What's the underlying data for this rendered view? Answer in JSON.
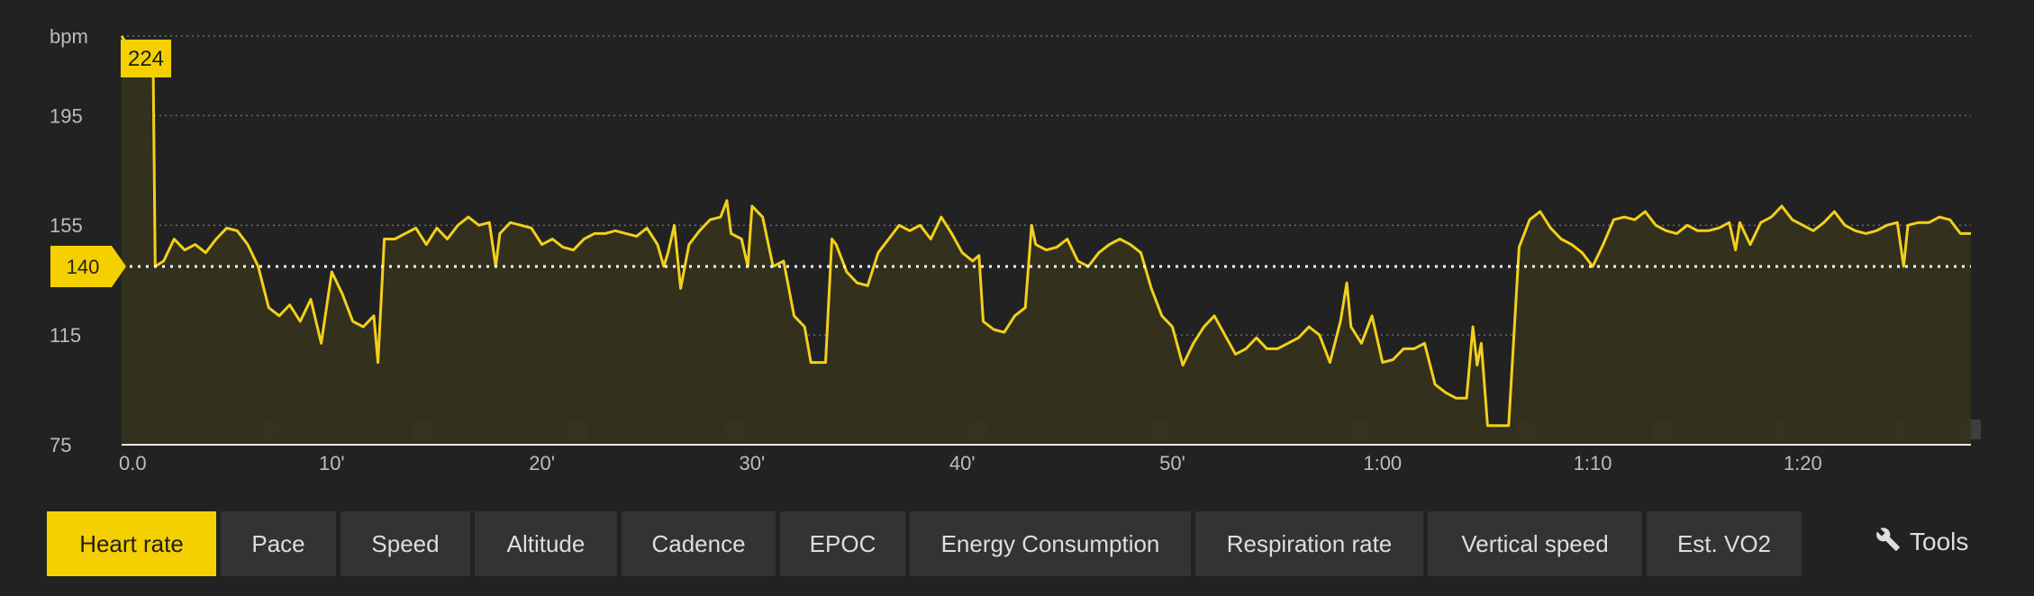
{
  "chart_data": {
    "type": "area",
    "ylabel": "bpm",
    "ylim": [
      75,
      224
    ],
    "yticks": [
      "75",
      "115",
      "155",
      "195"
    ],
    "xlim_minutes": [
      0,
      88
    ],
    "xticks": [
      {
        "t": 0,
        "label": "0.0"
      },
      {
        "t": 10,
        "label": "10'"
      },
      {
        "t": 20,
        "label": "20'"
      },
      {
        "t": 30,
        "label": "30'"
      },
      {
        "t": 40,
        "label": "40'"
      },
      {
        "t": 50,
        "label": "50'"
      },
      {
        "t": 60,
        "label": "1:00"
      },
      {
        "t": 70,
        "label": "1:10"
      },
      {
        "t": 80,
        "label": "1:20"
      }
    ],
    "grid": true,
    "max_label": "224",
    "avg_label": "140",
    "avg_value": 140,
    "series": [
      {
        "values": [
          [
            0.0,
            224
          ],
          [
            0.5,
            218
          ],
          [
            1.0,
            216
          ],
          [
            1.5,
            214
          ],
          [
            1.6,
            140
          ],
          [
            2.0,
            142
          ],
          [
            2.5,
            150
          ],
          [
            3.0,
            146
          ],
          [
            3.5,
            148
          ],
          [
            4.0,
            145
          ],
          [
            4.5,
            150
          ],
          [
            5.0,
            154
          ],
          [
            5.5,
            153
          ],
          [
            6.0,
            148
          ],
          [
            6.5,
            140
          ],
          [
            7.0,
            125
          ],
          [
            7.5,
            122
          ],
          [
            8.0,
            126
          ],
          [
            8.5,
            120
          ],
          [
            9.0,
            128
          ],
          [
            9.5,
            112
          ],
          [
            10.0,
            138
          ],
          [
            10.5,
            130
          ],
          [
            11.0,
            120
          ],
          [
            11.5,
            118
          ],
          [
            12.0,
            122
          ],
          [
            12.2,
            105
          ],
          [
            12.5,
            150
          ],
          [
            13.0,
            150
          ],
          [
            13.5,
            152
          ],
          [
            14.0,
            154
          ],
          [
            14.5,
            148
          ],
          [
            15.0,
            154
          ],
          [
            15.5,
            150
          ],
          [
            16.0,
            155
          ],
          [
            16.5,
            158
          ],
          [
            17.0,
            155
          ],
          [
            17.5,
            156
          ],
          [
            17.8,
            140
          ],
          [
            18.0,
            152
          ],
          [
            18.5,
            156
          ],
          [
            19.0,
            155
          ],
          [
            19.5,
            154
          ],
          [
            20.0,
            148
          ],
          [
            20.5,
            150
          ],
          [
            21.0,
            147
          ],
          [
            21.5,
            146
          ],
          [
            22.0,
            150
          ],
          [
            22.5,
            152
          ],
          [
            23.0,
            152
          ],
          [
            23.5,
            153
          ],
          [
            24.0,
            152
          ],
          [
            24.5,
            151
          ],
          [
            25.0,
            154
          ],
          [
            25.5,
            148
          ],
          [
            25.8,
            140
          ],
          [
            26.0,
            145
          ],
          [
            26.3,
            155
          ],
          [
            26.6,
            132
          ],
          [
            27.0,
            148
          ],
          [
            27.5,
            153
          ],
          [
            28.0,
            157
          ],
          [
            28.5,
            158
          ],
          [
            28.8,
            164
          ],
          [
            29.0,
            152
          ],
          [
            29.5,
            150
          ],
          [
            29.8,
            140
          ],
          [
            30.0,
            162
          ],
          [
            30.5,
            158
          ],
          [
            31.0,
            140
          ],
          [
            31.5,
            142
          ],
          [
            32.0,
            122
          ],
          [
            32.5,
            118
          ],
          [
            32.8,
            105
          ],
          [
            33.5,
            105
          ],
          [
            33.8,
            150
          ],
          [
            34.0,
            148
          ],
          [
            34.5,
            138
          ],
          [
            35.0,
            134
          ],
          [
            35.5,
            133
          ],
          [
            36.0,
            145
          ],
          [
            36.5,
            150
          ],
          [
            37.0,
            155
          ],
          [
            37.5,
            153
          ],
          [
            38.0,
            155
          ],
          [
            38.5,
            150
          ],
          [
            39.0,
            158
          ],
          [
            39.5,
            152
          ],
          [
            40.0,
            145
          ],
          [
            40.5,
            142
          ],
          [
            40.8,
            144
          ],
          [
            41.0,
            120
          ],
          [
            41.5,
            117
          ],
          [
            42.0,
            116
          ],
          [
            42.5,
            122
          ],
          [
            43.0,
            125
          ],
          [
            43.3,
            155
          ],
          [
            43.5,
            148
          ],
          [
            44.0,
            146
          ],
          [
            44.5,
            147
          ],
          [
            45.0,
            150
          ],
          [
            45.5,
            142
          ],
          [
            46.0,
            140
          ],
          [
            46.5,
            145
          ],
          [
            47.0,
            148
          ],
          [
            47.5,
            150
          ],
          [
            48.0,
            148
          ],
          [
            48.5,
            145
          ],
          [
            49.0,
            132
          ],
          [
            49.5,
            122
          ],
          [
            50.0,
            118
          ],
          [
            50.5,
            104
          ],
          [
            51.0,
            112
          ],
          [
            51.5,
            118
          ],
          [
            52.0,
            122
          ],
          [
            52.5,
            115
          ],
          [
            53.0,
            108
          ],
          [
            53.5,
            110
          ],
          [
            54.0,
            114
          ],
          [
            54.5,
            110
          ],
          [
            55.0,
            110
          ],
          [
            55.5,
            112
          ],
          [
            56.0,
            114
          ],
          [
            56.5,
            118
          ],
          [
            57.0,
            115
          ],
          [
            57.5,
            105
          ],
          [
            58.0,
            120
          ],
          [
            58.3,
            134
          ],
          [
            58.5,
            118
          ],
          [
            59.0,
            112
          ],
          [
            59.5,
            122
          ],
          [
            60.0,
            105
          ],
          [
            60.5,
            106
          ],
          [
            61.0,
            110
          ],
          [
            61.5,
            110
          ],
          [
            62.0,
            112
          ],
          [
            62.5,
            97
          ],
          [
            63.0,
            94
          ],
          [
            63.5,
            92
          ],
          [
            64.0,
            92
          ],
          [
            64.3,
            118
          ],
          [
            64.5,
            104
          ],
          [
            64.7,
            112
          ],
          [
            65.0,
            82
          ],
          [
            65.5,
            82
          ],
          [
            66.0,
            82
          ],
          [
            66.5,
            147
          ],
          [
            67.0,
            157
          ],
          [
            67.5,
            160
          ],
          [
            68.0,
            154
          ],
          [
            68.5,
            150
          ],
          [
            69.0,
            148
          ],
          [
            69.5,
            145
          ],
          [
            70.0,
            140
          ],
          [
            70.5,
            148
          ],
          [
            71.0,
            157
          ],
          [
            71.5,
            158
          ],
          [
            72.0,
            157
          ],
          [
            72.5,
            160
          ],
          [
            73.0,
            155
          ],
          [
            73.5,
            153
          ],
          [
            74.0,
            152
          ],
          [
            74.5,
            155
          ],
          [
            75.0,
            153
          ],
          [
            75.5,
            153
          ],
          [
            76.0,
            154
          ],
          [
            76.5,
            156
          ],
          [
            76.8,
            146
          ],
          [
            77.0,
            156
          ],
          [
            77.5,
            148
          ],
          [
            78.0,
            156
          ],
          [
            78.5,
            158
          ],
          [
            79.0,
            162
          ],
          [
            79.5,
            157
          ],
          [
            80.0,
            155
          ],
          [
            80.5,
            153
          ],
          [
            81.0,
            156
          ],
          [
            81.5,
            160
          ],
          [
            82.0,
            155
          ],
          [
            82.5,
            153
          ],
          [
            83.0,
            152
          ],
          [
            83.5,
            153
          ],
          [
            84.0,
            155
          ],
          [
            84.5,
            156
          ],
          [
            84.8,
            140
          ],
          [
            85.0,
            155
          ],
          [
            85.5,
            156
          ],
          [
            86.0,
            156
          ],
          [
            86.5,
            158
          ],
          [
            87.0,
            157
          ],
          [
            87.5,
            152
          ],
          [
            88.0,
            152
          ]
        ]
      }
    ],
    "lap_markers_minutes": [
      7,
      14.3,
      21.7,
      29.2,
      40.8,
      49.4,
      58.9,
      66.8,
      73.3,
      78.9,
      84.6,
      88
    ]
  },
  "colors": {
    "background": "#222222",
    "accent": "#f5d000",
    "line": "#f2d01b",
    "fill": "#35321f",
    "grid": "#6a6a6a",
    "marker": "#3e3e3e",
    "tab": "#333333",
    "tab_text": "#dedede"
  },
  "toolbar": {
    "tabs": [
      {
        "label": "Heart rate",
        "active": true
      },
      {
        "label": "Pace",
        "active": false
      },
      {
        "label": "Speed",
        "active": false
      },
      {
        "label": "Altitude",
        "active": false
      },
      {
        "label": "Cadence",
        "active": false
      },
      {
        "label": "EPOC",
        "active": false
      },
      {
        "label": "Energy Consumption",
        "active": false
      },
      {
        "label": "Respiration rate",
        "active": false
      },
      {
        "label": "Vertical speed",
        "active": false
      },
      {
        "label": "Est. VO2",
        "active": false
      }
    ],
    "tools_label": "Tools",
    "tools_icon": "wrench-icon"
  }
}
